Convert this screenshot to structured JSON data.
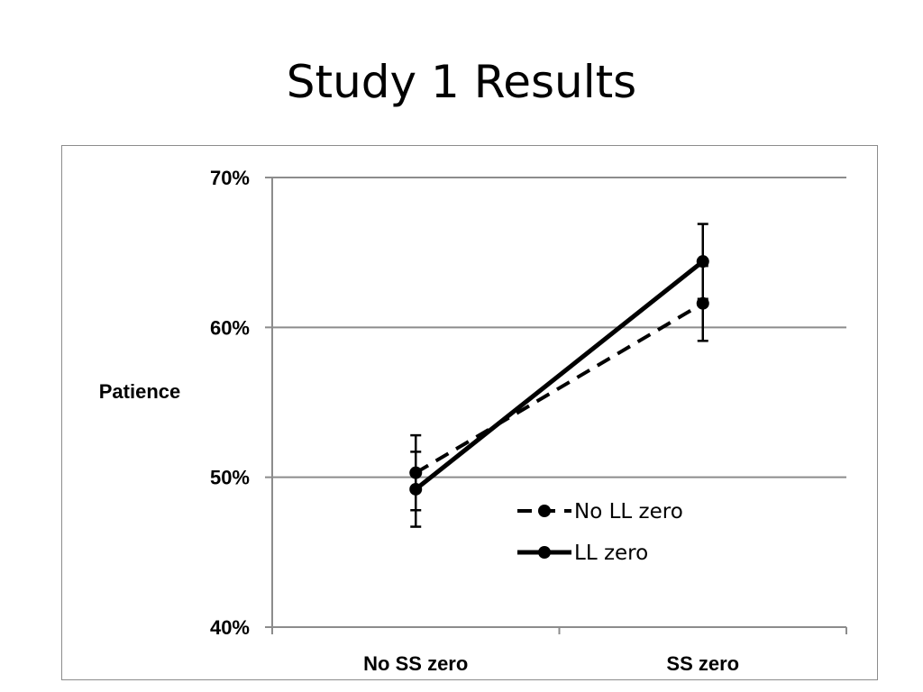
{
  "slide": {
    "title": "Study 1 Results"
  },
  "chart_data": {
    "type": "line",
    "categories": [
      "No SS zero",
      "SS zero"
    ],
    "ylabel": "Patience",
    "ylim": [
      0.4,
      0.7
    ],
    "yticks": [
      {
        "value": 0.4,
        "label": "40%"
      },
      {
        "value": 0.5,
        "label": "50%"
      },
      {
        "value": 0.6,
        "label": "60%"
      },
      {
        "value": 0.7,
        "label": "70%"
      }
    ],
    "grid": true,
    "legend_position": "bottom-right inside",
    "series": [
      {
        "name": "No LL zero",
        "style": "dashed",
        "color": "#000000",
        "values": [
          0.503,
          0.616
        ],
        "error": [
          0.025,
          0.025
        ]
      },
      {
        "name": "LL zero",
        "style": "solid",
        "color": "#000000",
        "values": [
          0.492,
          0.644
        ],
        "error": [
          0.025,
          0.025
        ]
      }
    ]
  }
}
